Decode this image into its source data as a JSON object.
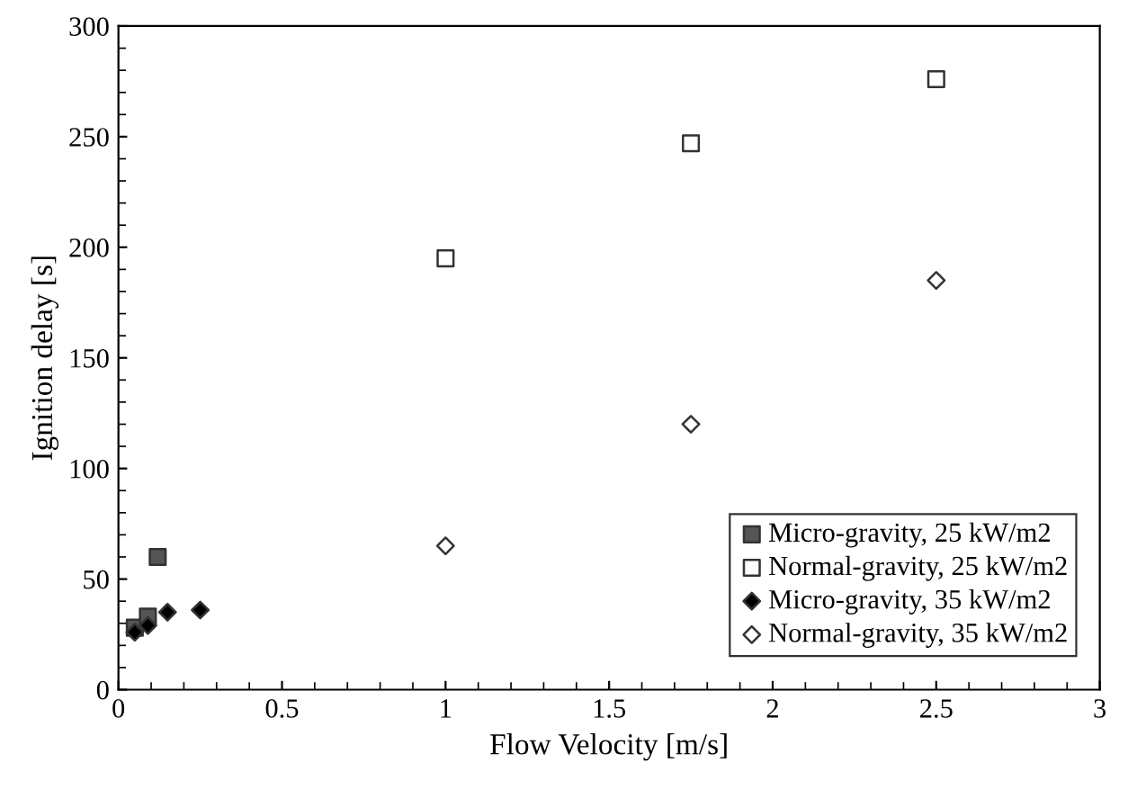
{
  "chart_data": {
    "type": "scatter",
    "xlabel": "Flow Velocity [m/s]",
    "ylabel": "Ignition delay [s]",
    "xlim": [
      0,
      3
    ],
    "ylim": [
      0,
      300
    ],
    "xticks": [
      0,
      0.5,
      1,
      1.5,
      2,
      2.5,
      3
    ],
    "yticks": [
      0,
      50,
      100,
      150,
      200,
      250,
      300
    ],
    "grid": false,
    "legend": "bottom right",
    "series": [
      {
        "name": "Micro-gravity, 25 kW/m2",
        "color": "#555555",
        "marker": "square",
        "x": [
          0.05,
          0.09,
          0.12
        ],
        "values": [
          28,
          33,
          60
        ]
      },
      {
        "name": "Normal-gravity, 25 kW/m2",
        "color": "#ffffff",
        "marker": "square",
        "x": [
          1,
          1.75,
          2.5
        ],
        "values": [
          195,
          247,
          276
        ]
      },
      {
        "name": "Micro-gravity, 35 kW/m2",
        "color": "#000000",
        "marker": "diamond",
        "x": [
          0.05,
          0.09,
          0.15,
          0.25
        ],
        "values": [
          26,
          29,
          35,
          36
        ]
      },
      {
        "name": "Normal-gravity, 35 kW/m2",
        "color": "#ffffff",
        "marker": "diamond",
        "x": [
          1,
          1.75,
          2.5
        ],
        "values": [
          65,
          120,
          185
        ]
      }
    ]
  }
}
